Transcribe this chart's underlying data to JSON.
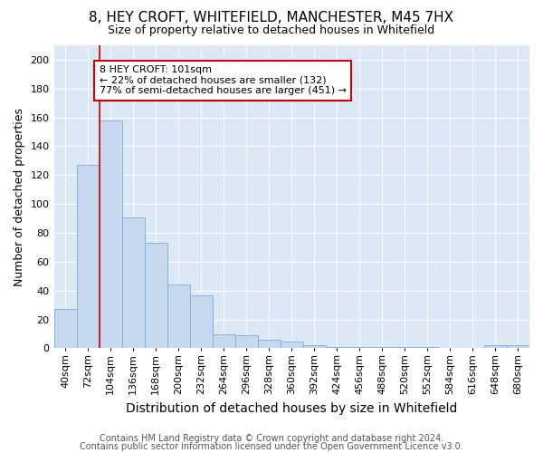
{
  "title": "8, HEY CROFT, WHITEFIELD, MANCHESTER, M45 7HX",
  "subtitle": "Size of property relative to detached houses in Whitefield",
  "xlabel": "Distribution of detached houses by size in Whitefield",
  "ylabel": "Number of detached properties",
  "footer1": "Contains HM Land Registry data © Crown copyright and database right 2024.",
  "footer2": "Contains public sector information licensed under the Open Government Licence v3.0.",
  "annotation_line1": "8 HEY CROFT: 101sqm",
  "annotation_line2": "← 22% of detached houses are smaller (132)",
  "annotation_line3": "77% of semi-detached houses are larger (451) →",
  "bar_labels": [
    "40sqm",
    "72sqm",
    "104sqm",
    "136sqm",
    "168sqm",
    "200sqm",
    "232sqm",
    "264sqm",
    "296sqm",
    "328sqm",
    "360sqm",
    "392sqm",
    "424sqm",
    "456sqm",
    "488sqm",
    "520sqm",
    "552sqm",
    "584sqm",
    "616sqm",
    "648sqm",
    "680sqm"
  ],
  "bar_values": [
    27,
    127,
    158,
    91,
    73,
    44,
    37,
    10,
    9,
    6,
    5,
    2,
    1,
    1,
    1,
    1,
    1,
    0,
    0,
    2,
    2
  ],
  "bar_color": "#c5d8f0",
  "bar_edge_color": "#7aadd4",
  "red_line_x": 2,
  "red_line_color": "#cc0000",
  "annotation_box_color": "#cc0000",
  "background_color": "#dce8f5",
  "ylim": [
    0,
    210
  ],
  "yticks": [
    0,
    20,
    40,
    60,
    80,
    100,
    120,
    140,
    160,
    180,
    200
  ],
  "title_fontsize": 11,
  "subtitle_fontsize": 9,
  "ylabel_fontsize": 9,
  "xlabel_fontsize": 10,
  "tick_fontsize": 8,
  "annotation_fontsize": 8,
  "footer_fontsize": 7
}
